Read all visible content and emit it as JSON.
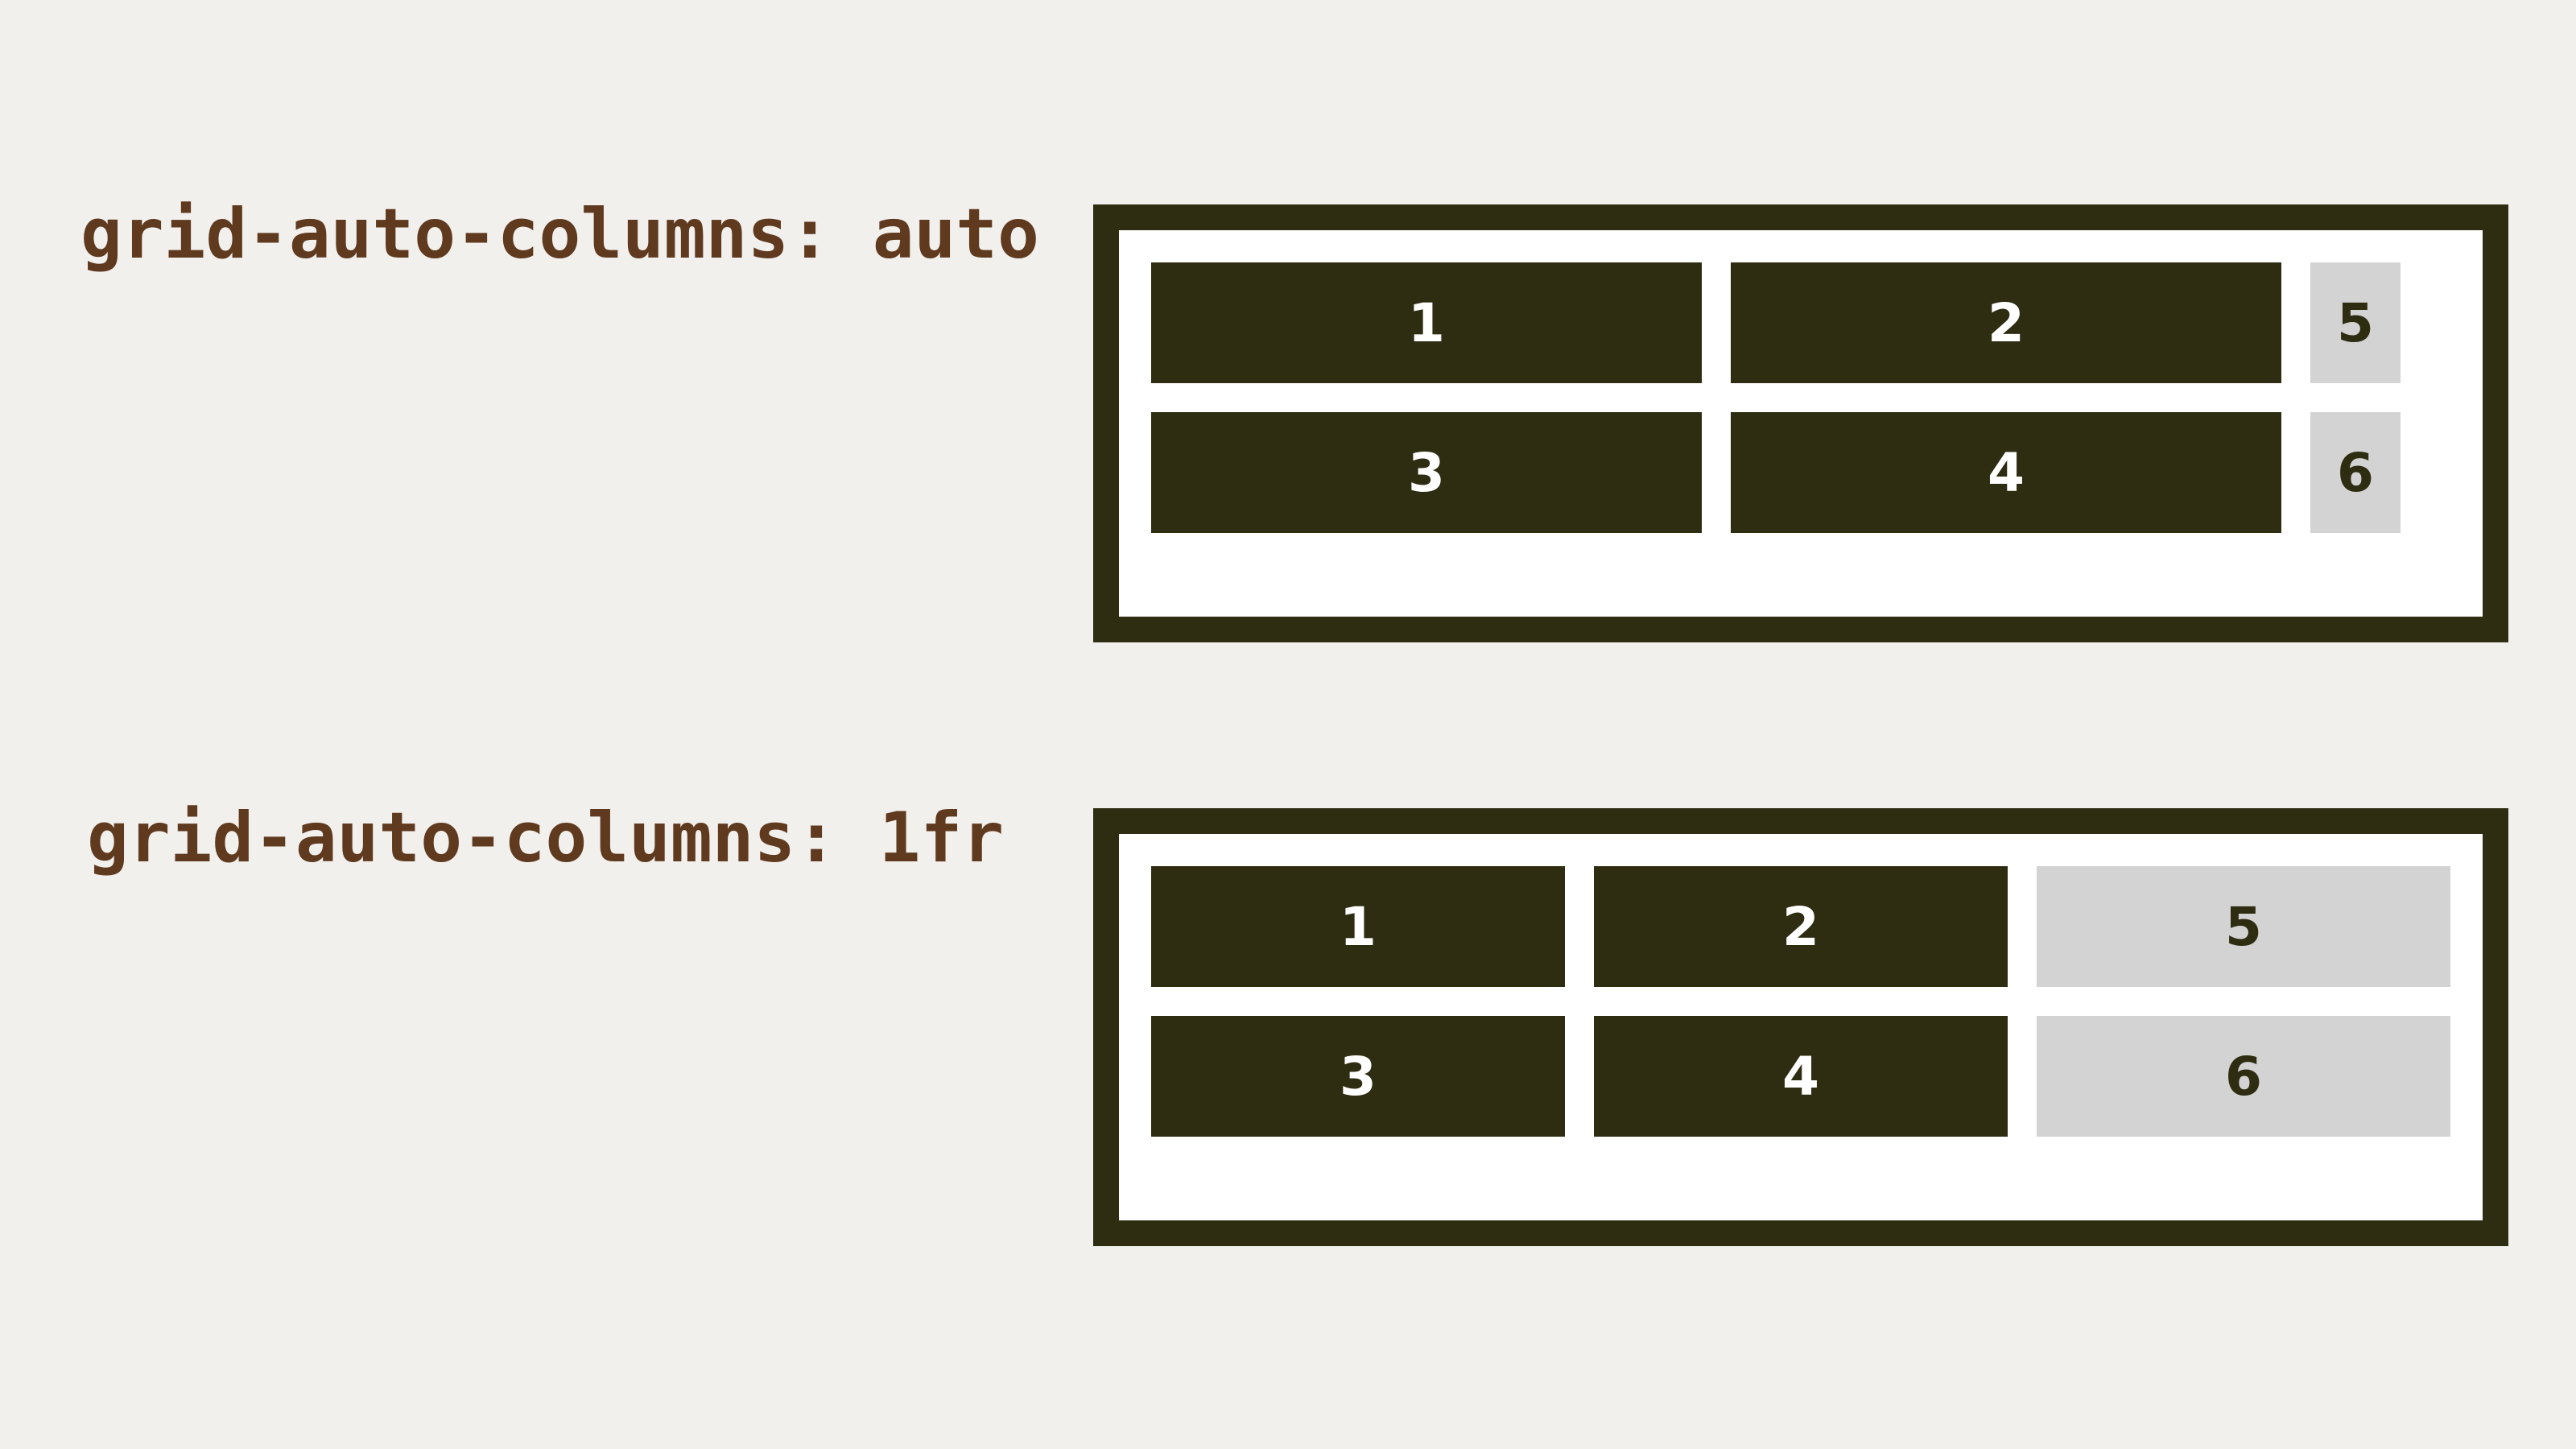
{
  "colors": {
    "background": "#f2f0ed",
    "label_text": "#5f3a1f",
    "frame_border": "#2e2c11",
    "explicit_cell": "#2e2c11",
    "implicit_cell": "#d3d3d3"
  },
  "examples": [
    {
      "label": "grid-auto-columns: auto",
      "cells": [
        "1",
        "2",
        "5",
        "3",
        "4",
        "6"
      ]
    },
    {
      "label": "grid-auto-columns: 1fr",
      "cells": [
        "1",
        "2",
        "5",
        "3",
        "4",
        "6"
      ]
    }
  ]
}
